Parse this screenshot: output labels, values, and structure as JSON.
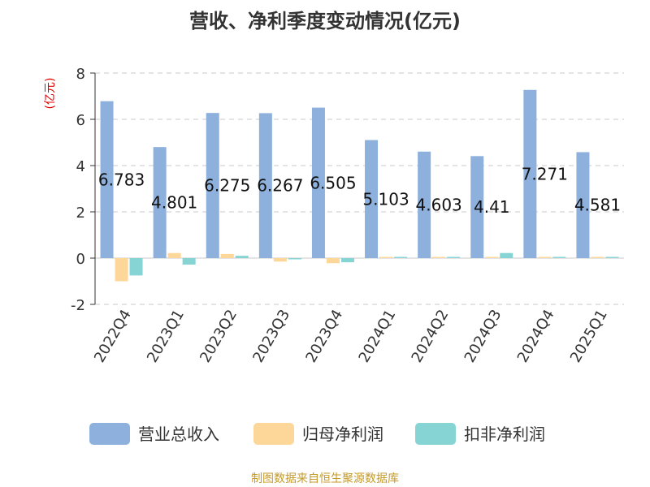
{
  "chart_data": {
    "type": "bar",
    "title": "营收、净利季度变动情况(亿元)",
    "ylabel": "(亿元)",
    "ylim": [
      -2,
      8
    ],
    "yticks": [
      8,
      6,
      4,
      2,
      0,
      -2
    ],
    "grid": true,
    "legend_position": "bottom",
    "categories": [
      "2022Q4",
      "2023Q1",
      "2023Q2",
      "2023Q3",
      "2023Q4",
      "2024Q1",
      "2024Q2",
      "2024Q3",
      "2024Q4",
      "2025Q1"
    ],
    "series": [
      {
        "name": "营业总收入",
        "color": "#8eb0dd",
        "values": [
          6.783,
          4.801,
          6.275,
          6.267,
          6.505,
          5.103,
          4.603,
          4.41,
          7.271,
          4.581
        ],
        "labels": [
          "6.783",
          "4.801",
          "6.275",
          "6.267",
          "6.505",
          "5.103",
          "4.603",
          "4.41",
          "7.271",
          "4.581"
        ]
      },
      {
        "name": "归母净利润",
        "color": "#fdd699",
        "values": [
          -1.0,
          0.22,
          0.18,
          -0.15,
          -0.22,
          0.03,
          0.03,
          0.02,
          0.03,
          0.02
        ]
      },
      {
        "name": "扣非净利润",
        "color": "#86d4d4",
        "values": [
          -0.75,
          -0.28,
          0.1,
          -0.02,
          -0.18,
          0.03,
          0.04,
          0.22,
          0.03,
          0.02
        ]
      }
    ],
    "source": "制图数据来自恒生聚源数据库"
  }
}
